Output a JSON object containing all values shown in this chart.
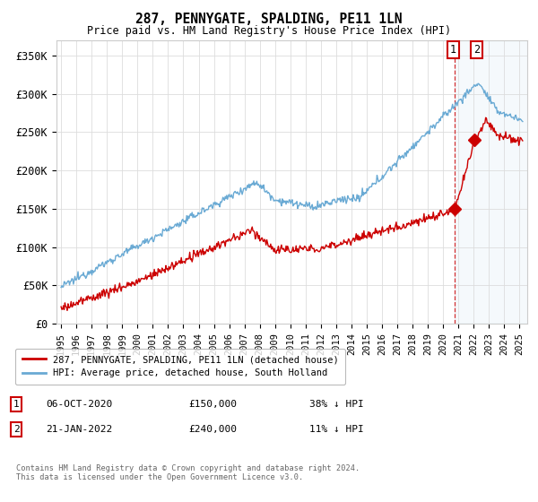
{
  "title": "287, PENNYGATE, SPALDING, PE11 1LN",
  "subtitle": "Price paid vs. HM Land Registry's House Price Index (HPI)",
  "ylabel_ticks": [
    "£0",
    "£50K",
    "£100K",
    "£150K",
    "£200K",
    "£250K",
    "£300K",
    "£350K"
  ],
  "ytick_values": [
    0,
    50000,
    100000,
    150000,
    200000,
    250000,
    300000,
    350000
  ],
  "ylim": [
    0,
    370000
  ],
  "xlim_start": 1994.7,
  "xlim_end": 2025.5,
  "hpi_color": "#6aaad4",
  "price_color": "#cc0000",
  "marker1_x": 2020.76,
  "marker1_y": 150000,
  "marker2_x": 2022.06,
  "marker2_y": 240000,
  "legend_label1": "287, PENNYGATE, SPALDING, PE11 1LN (detached house)",
  "legend_label2": "HPI: Average price, detached house, South Holland",
  "footnote": "Contains HM Land Registry data © Crown copyright and database right 2024.\nThis data is licensed under the Open Government Licence v3.0.",
  "background_color": "#ffffff",
  "grid_color": "#dddddd",
  "shaded_region_color": "#d8e8f5",
  "annotation1_date": "06-OCT-2020",
  "annotation1_price": "£150,000",
  "annotation1_hpi": "38% ↓ HPI",
  "annotation2_date": "21-JAN-2022",
  "annotation2_price": "£240,000",
  "annotation2_hpi": "11% ↓ HPI"
}
